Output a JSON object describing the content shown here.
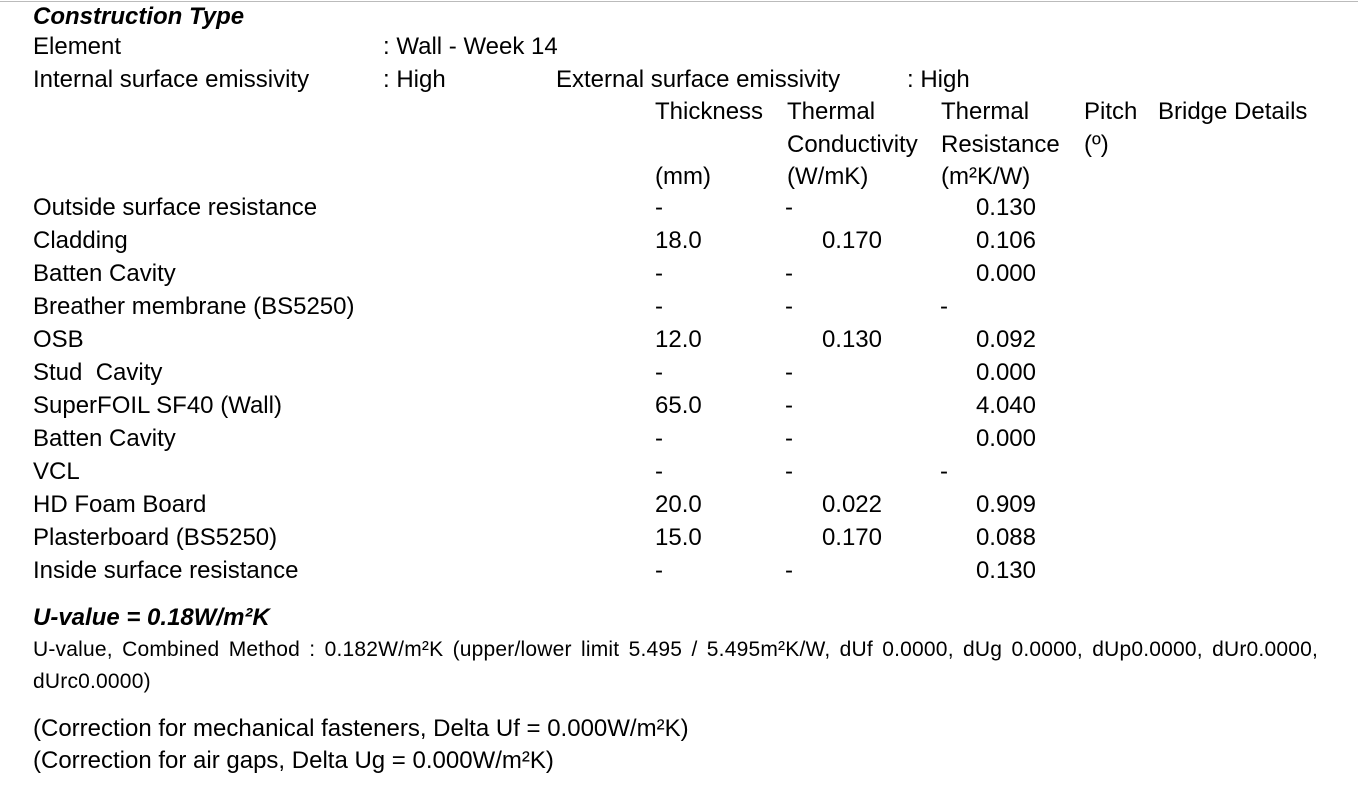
{
  "title": "Construction Type",
  "element": {
    "label": "Element",
    "value": ": Wall - Week 14"
  },
  "emissivity": {
    "internal_label": "Internal surface emissivity",
    "internal_value": ": High",
    "external_label": "External surface emissivity",
    "external_value": ": High"
  },
  "table": {
    "columns": [
      {
        "lines": [
          "Thickness",
          "",
          "(mm)"
        ]
      },
      {
        "lines": [
          "Thermal",
          "Conductivity",
          "(W/mK)"
        ]
      },
      {
        "lines": [
          "Thermal",
          "Resistance",
          "(m²K/W)"
        ]
      },
      {
        "lines": [
          "Pitch",
          "(º)"
        ]
      },
      {
        "lines": [
          "Bridge Details"
        ]
      }
    ],
    "rows": [
      [
        "Outside surface resistance",
        "-",
        "-",
        "0.130"
      ],
      [
        "Cladding",
        "18.0",
        "0.170",
        "0.106"
      ],
      [
        "Batten Cavity",
        "-",
        "-",
        "0.000"
      ],
      [
        "Breather membrane (BS5250)",
        "-",
        "-",
        "-"
      ],
      [
        "OSB",
        "12.0",
        "0.130",
        "0.092"
      ],
      [
        "Stud  Cavity",
        "-",
        "-",
        "0.000"
      ],
      [
        "SuperFOIL SF40 (Wall)",
        "65.0",
        "-",
        "4.040"
      ],
      [
        "Batten Cavity",
        "-",
        "-",
        "0.000"
      ],
      [
        "VCL",
        "-",
        "-",
        "-"
      ],
      [
        "HD Foam Board",
        "20.0",
        "0.022",
        "0.909"
      ],
      [
        "Plasterboard (BS5250)",
        "15.0",
        "0.170",
        "0.088"
      ],
      [
        "Inside surface resistance",
        "-",
        "-",
        "0.130"
      ]
    ]
  },
  "u_value": "U-value = 0.18W/m²K",
  "combined_method": "U-value, Combined Method  : 0.182W/m²K (upper/lower limit 5.495 / 5.495m²K/W, dUf 0.0000, dUg 0.0000, dUp0.0000, dUr0.0000,  dUrc0.0000)",
  "corrections": [
    "(Correction for mechanical fasteners, Delta Uf = 0.000W/m²K)",
    "(Correction for air gaps, Delta Ug = 0.000W/m²K)"
  ]
}
